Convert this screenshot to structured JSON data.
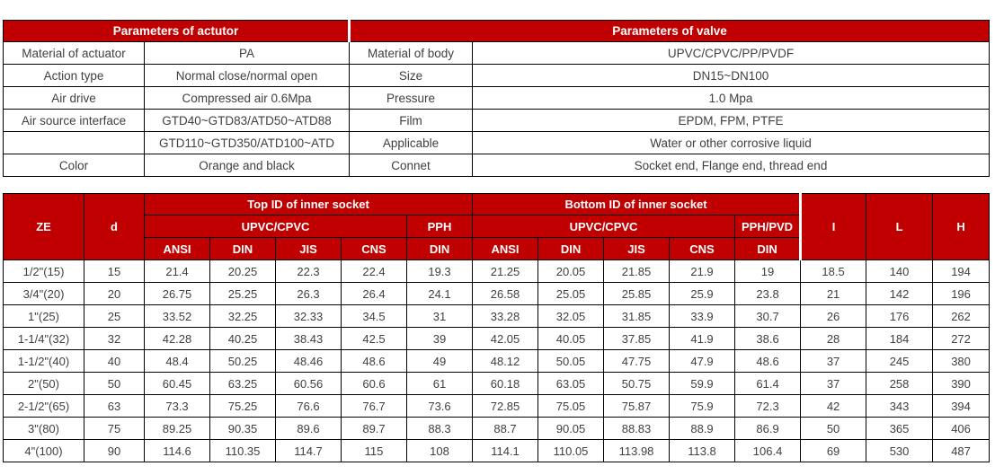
{
  "colors": {
    "header_bg": "#c00000",
    "header_text": "#ffffff",
    "body_text": "#404040",
    "border": "#000000",
    "page_bg": "#ffffff"
  },
  "params_table": {
    "actuator_header": "Parameters of actutor",
    "valve_header": "Parameters of valve",
    "rows": [
      {
        "label1": "Material of actuator",
        "value1": "PA",
        "label2": "Material of body",
        "value2": "UPVC/CPVC/PP/PVDF"
      },
      {
        "label1": "Action type",
        "value1": "Normal close/normal open",
        "label2": "Size",
        "value2": "DN15~DN100"
      },
      {
        "label1": "Air drive",
        "value1": "Compressed air 0.6Mpa",
        "label2": "Pressure",
        "value2": "1.0 Mpa"
      },
      {
        "label1": "Air source interface",
        "value1": "GTD40~GTD83/ATD50~ATD88",
        "label2": "Film",
        "value2": "EPDM, FPM, PTFE"
      },
      {
        "label1": "",
        "value1": "GTD110~GTD350/ATD100~ATD",
        "label2": "Applicable",
        "value2": "Water or other corrosive liquid"
      },
      {
        "label1": "Color",
        "value1": "Orange and black",
        "label2": "Connet",
        "value2": "Socket end, Flange end, thread end"
      }
    ]
  },
  "dimensions_table": {
    "col_ze": "ZE",
    "col_d": "d",
    "top_group": "Top ID of inner socket",
    "bottom_group": "Bottom ID of inner socket",
    "top_material": "UPVC/CPVC",
    "top_material2": "PPH",
    "bottom_material": "UPVC/CPVC",
    "bottom_material2": "PPH/PVD",
    "standards": [
      "ANSI",
      "DIN",
      "JIS",
      "CNS",
      "DIN"
    ],
    "col_i": "I",
    "col_l": "L",
    "col_h": "H",
    "rows": [
      [
        "1/2\"(15)",
        "15",
        "21.4",
        "20.25",
        "22.3",
        "22.4",
        "19.3",
        "21.25",
        "20.05",
        "21.85",
        "21.9",
        "19",
        "18.5",
        "140",
        "194"
      ],
      [
        "3/4\"(20)",
        "20",
        "26.75",
        "25.25",
        "26.3",
        "26.4",
        "24.1",
        "26.58",
        "25.05",
        "25.85",
        "25.9",
        "23.8",
        "21",
        "142",
        "196"
      ],
      [
        "1\"(25)",
        "25",
        "33.52",
        "32.25",
        "32.33",
        "34.5",
        "31",
        "33.28",
        "32.05",
        "31.85",
        "33.9",
        "30.7",
        "26",
        "176",
        "262"
      ],
      [
        "1-1/4\"(32)",
        "32",
        "42.28",
        "40.25",
        "38.43",
        "42.5",
        "39",
        "42.05",
        "40.05",
        "37.85",
        "41.9",
        "38.6",
        "28",
        "184",
        "272"
      ],
      [
        "1-1/2\"(40)",
        "40",
        "48.4",
        "50.25",
        "48.46",
        "48.6",
        "49",
        "48.12",
        "50.05",
        "47.75",
        "47.9",
        "48.6",
        "37",
        "245",
        "380"
      ],
      [
        "2\"(50)",
        "50",
        "60.45",
        "63.25",
        "60.56",
        "60.6",
        "61",
        "60.18",
        "63.05",
        "50.75",
        "59.9",
        "61.4",
        "37",
        "258",
        "390"
      ],
      [
        "2-1/2\"(65)",
        "63",
        "73.3",
        "75.25",
        "76.6",
        "76.7",
        "73.6",
        "72.85",
        "75.05",
        "75.87",
        "75.9",
        "72.3",
        "42",
        "343",
        "394"
      ],
      [
        "3\"(80)",
        "75",
        "89.25",
        "90.35",
        "89.6",
        "89.7",
        "88.3",
        "88.7",
        "90.05",
        "88.83",
        "88.9",
        "86.9",
        "50",
        "365",
        "406"
      ],
      [
        "4\"(100)",
        "90",
        "114.6",
        "110.35",
        "114.7",
        "115",
        "108",
        "114.1",
        "110.05",
        "113.98",
        "113.8",
        "106.4",
        "69",
        "530",
        "487"
      ]
    ]
  }
}
